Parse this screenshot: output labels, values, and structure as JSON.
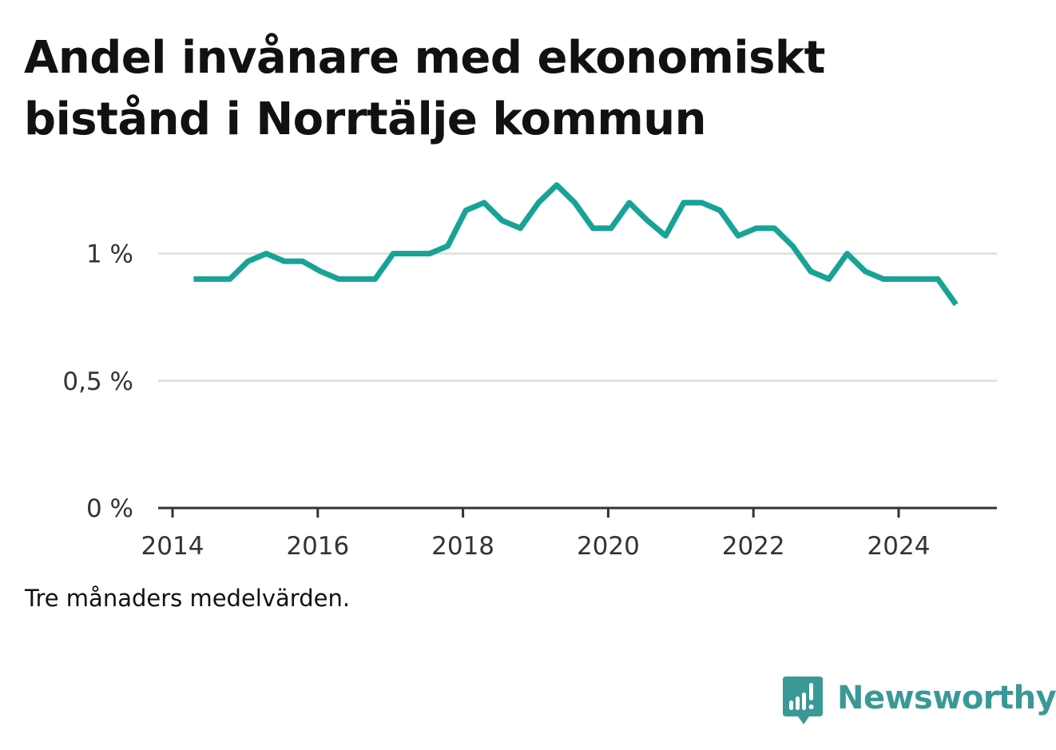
{
  "title": "Andel invånare med ekonomiskt bistånd i Norrtälje kommun",
  "note": "Tre månaders medelvärden.",
  "brand": {
    "name": "Newsworthy",
    "icon": "newsworthy-logo-icon",
    "color": "#3a9996"
  },
  "chart_data": {
    "type": "line",
    "title": "Andel invånare med ekonomiskt bistånd i Norrtälje kommun",
    "xlabel": "",
    "ylabel": "",
    "xlim": [
      2014,
      2025.35
    ],
    "ylim": [
      0,
      1.3
    ],
    "x_ticks": [
      2014,
      2016,
      2018,
      2020,
      2022,
      2024
    ],
    "x_tick_labels": [
      "2014",
      "2016",
      "2018",
      "2020",
      "2022",
      "2024"
    ],
    "y_ticks": [
      0,
      0.5,
      1
    ],
    "y_tick_labels": [
      "0 %",
      "0,5 %",
      "1 %"
    ],
    "grid": true,
    "color": "#17a396",
    "series": [
      {
        "x": [
          2014.29,
          2014.54,
          2014.79,
          2015.04,
          2015.29,
          2015.54,
          2015.79,
          2016.04,
          2016.29,
          2016.54,
          2016.79,
          2017.04,
          2017.29,
          2017.54,
          2017.79,
          2018.04,
          2018.29,
          2018.54,
          2018.79,
          2019.04,
          2019.29,
          2019.54,
          2019.79,
          2020.04,
          2020.29,
          2020.54,
          2020.79,
          2021.04,
          2021.29,
          2021.54,
          2021.79,
          2022.04,
          2022.29,
          2022.54,
          2022.79,
          2023.04,
          2023.29,
          2023.54,
          2023.79,
          2024.04,
          2024.29,
          2024.54,
          2024.79
        ],
        "values": [
          0.9,
          0.9,
          0.9,
          0.97,
          1.0,
          0.97,
          0.97,
          0.93,
          0.9,
          0.9,
          0.9,
          1.0,
          1.0,
          1.0,
          1.03,
          1.17,
          1.2,
          1.13,
          1.1,
          1.2,
          1.27,
          1.2,
          1.1,
          1.1,
          1.2,
          1.13,
          1.07,
          1.2,
          1.2,
          1.17,
          1.07,
          1.1,
          1.1,
          1.03,
          0.93,
          0.9,
          1.0,
          0.93,
          0.9,
          0.9,
          0.9,
          0.9,
          0.8
        ]
      }
    ]
  }
}
